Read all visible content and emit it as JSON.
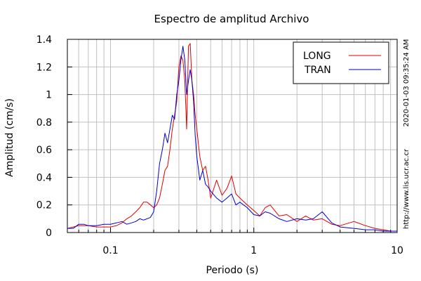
{
  "chart_data": {
    "type": "line",
    "title": "Espectro de amplitud Archivo",
    "xlabel": "Periodo (s)",
    "ylabel": "Amplitud (cm/s)",
    "x_scale": "log",
    "xlim": [
      0.05,
      10
    ],
    "ylim": [
      0,
      1.4
    ],
    "grid": true,
    "legend_position": "top-right",
    "x_ticks": [
      {
        "value": 0.1,
        "label": "0.1"
      },
      {
        "value": 1,
        "label": "1"
      },
      {
        "value": 10,
        "label": "10"
      }
    ],
    "y_ticks": [
      {
        "value": 0,
        "label": "0"
      },
      {
        "value": 0.2,
        "label": "0.2"
      },
      {
        "value": 0.4,
        "label": "0.4"
      },
      {
        "value": 0.6,
        "label": "0.6"
      },
      {
        "value": 0.8,
        "label": "0.8"
      },
      {
        "value": 1.0,
        "label": "1"
      },
      {
        "value": 1.2,
        "label": "1.2"
      },
      {
        "value": 1.4,
        "label": "1.4"
      }
    ],
    "series": [
      {
        "name": "LONG",
        "color": "#e00000",
        "x": [
          0.05,
          0.055,
          0.06,
          0.065,
          0.07,
          0.08,
          0.09,
          0.1,
          0.11,
          0.12,
          0.13,
          0.14,
          0.15,
          0.16,
          0.17,
          0.18,
          0.19,
          0.2,
          0.21,
          0.22,
          0.23,
          0.24,
          0.25,
          0.26,
          0.27,
          0.28,
          0.29,
          0.3,
          0.31,
          0.32,
          0.33,
          0.34,
          0.35,
          0.36,
          0.37,
          0.38,
          0.39,
          0.4,
          0.42,
          0.44,
          0.46,
          0.48,
          0.5,
          0.55,
          0.6,
          0.65,
          0.7,
          0.75,
          0.8,
          0.9,
          1.0,
          1.1,
          1.2,
          1.3,
          1.5,
          1.7,
          2.0,
          2.3,
          2.6,
          3.0,
          3.5,
          4.0,
          5.0,
          6.0,
          7.0,
          8.0,
          9.0,
          10.0
        ],
        "values": [
          0.03,
          0.04,
          0.05,
          0.05,
          0.05,
          0.04,
          0.04,
          0.04,
          0.05,
          0.07,
          0.1,
          0.12,
          0.15,
          0.18,
          0.22,
          0.22,
          0.2,
          0.18,
          0.2,
          0.25,
          0.35,
          0.45,
          0.48,
          0.6,
          0.75,
          0.85,
          0.95,
          1.2,
          1.28,
          1.25,
          1.1,
          0.75,
          1.35,
          1.37,
          1.1,
          1.0,
          0.85,
          0.75,
          0.55,
          0.45,
          0.48,
          0.38,
          0.25,
          0.38,
          0.27,
          0.32,
          0.41,
          0.28,
          0.25,
          0.2,
          0.16,
          0.12,
          0.18,
          0.2,
          0.12,
          0.13,
          0.08,
          0.12,
          0.09,
          0.1,
          0.06,
          0.05,
          0.08,
          0.05,
          0.03,
          0.02,
          0.01,
          0.01
        ]
      },
      {
        "name": "TRAN",
        "color": "#0000d0",
        "x": [
          0.05,
          0.055,
          0.06,
          0.065,
          0.07,
          0.08,
          0.09,
          0.1,
          0.11,
          0.12,
          0.13,
          0.14,
          0.15,
          0.16,
          0.17,
          0.18,
          0.19,
          0.2,
          0.21,
          0.22,
          0.23,
          0.24,
          0.25,
          0.26,
          0.27,
          0.28,
          0.29,
          0.3,
          0.31,
          0.32,
          0.33,
          0.34,
          0.35,
          0.36,
          0.37,
          0.38,
          0.39,
          0.4,
          0.42,
          0.44,
          0.46,
          0.48,
          0.5,
          0.55,
          0.6,
          0.65,
          0.7,
          0.75,
          0.8,
          0.9,
          1.0,
          1.1,
          1.2,
          1.3,
          1.5,
          1.7,
          2.0,
          2.3,
          2.6,
          3.0,
          3.5,
          4.0,
          5.0,
          6.0,
          7.0,
          8.0,
          9.0,
          10.0
        ],
        "values": [
          0.03,
          0.03,
          0.06,
          0.06,
          0.05,
          0.05,
          0.06,
          0.06,
          0.07,
          0.08,
          0.06,
          0.07,
          0.08,
          0.1,
          0.09,
          0.1,
          0.11,
          0.15,
          0.3,
          0.5,
          0.6,
          0.72,
          0.65,
          0.75,
          0.85,
          0.82,
          1.0,
          1.1,
          1.25,
          1.35,
          1.25,
          1.0,
          1.1,
          1.18,
          1.1,
          0.95,
          0.7,
          0.55,
          0.38,
          0.45,
          0.35,
          0.33,
          0.3,
          0.25,
          0.22,
          0.25,
          0.28,
          0.2,
          0.22,
          0.18,
          0.13,
          0.12,
          0.15,
          0.14,
          0.1,
          0.08,
          0.1,
          0.09,
          0.1,
          0.15,
          0.07,
          0.04,
          0.03,
          0.02,
          0.02,
          0.01,
          0.01,
          0.01
        ]
      }
    ],
    "side_labels": {
      "timestamp": "2020-01-03 09:35:24 AM",
      "source_url": "http://www.lis.ucr.ac.cr"
    }
  }
}
